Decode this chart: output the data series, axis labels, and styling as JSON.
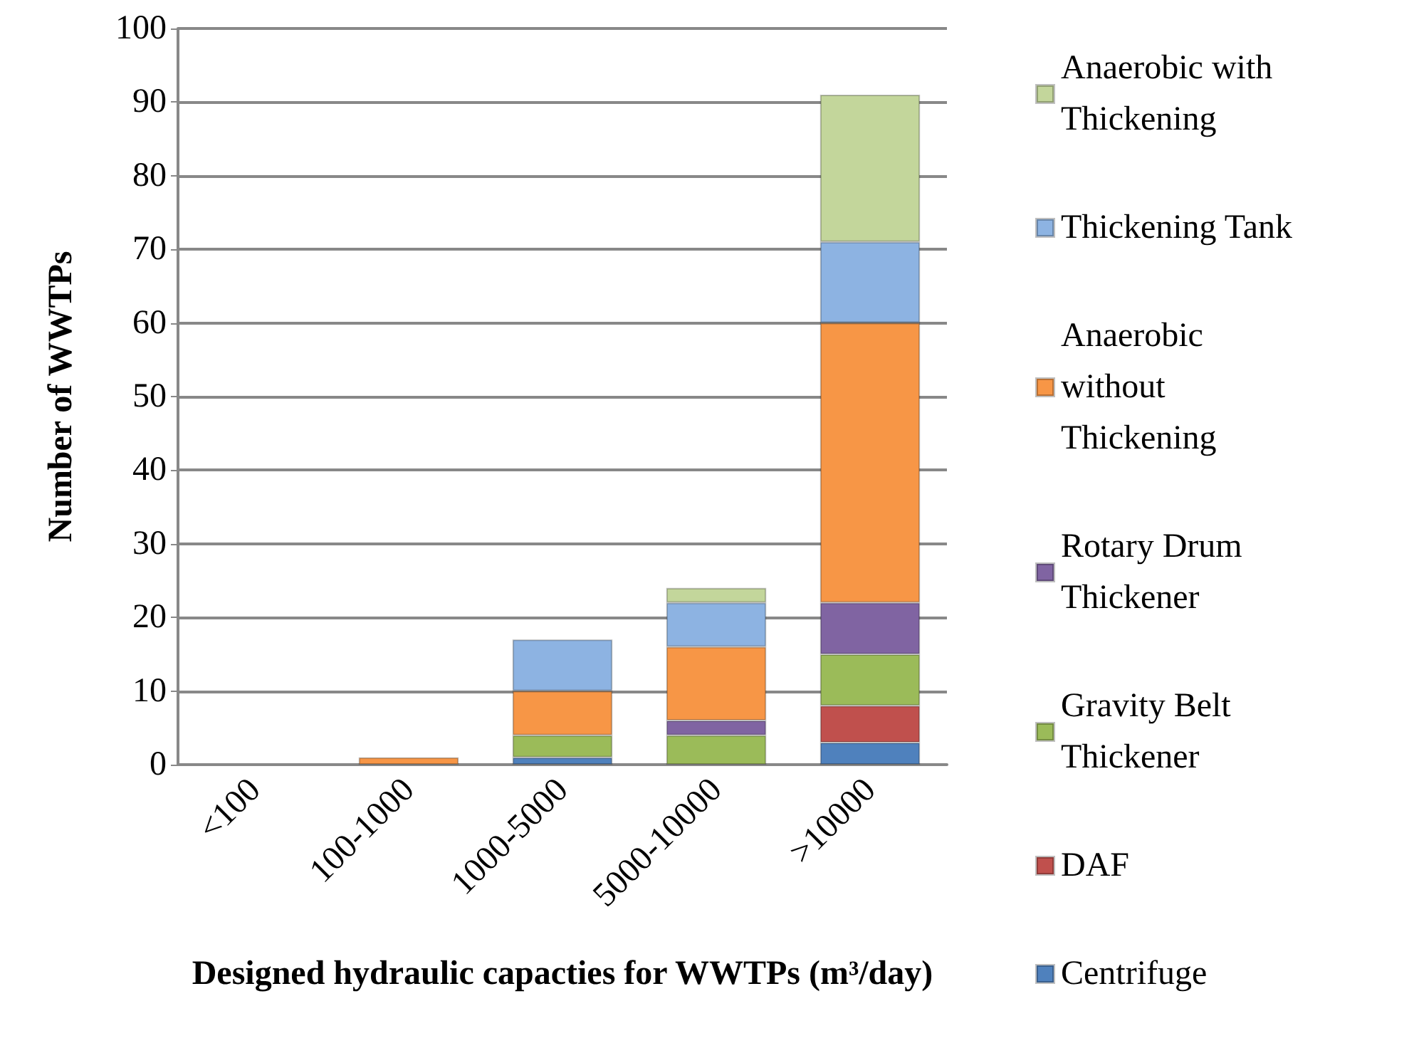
{
  "chart_data": {
    "type": "bar",
    "stacked": true,
    "xlabel": "Designed hydraulic capacties for WWTPs (m³/day)",
    "ylabel": "Number of WWTPs",
    "categories": [
      "<100",
      "100-1000",
      "1000-5000",
      "5000-10000",
      ">10000"
    ],
    "series": [
      {
        "name": "Centrifuge",
        "color": "#4f81bd",
        "values": [
          0,
          0,
          1,
          0,
          3
        ]
      },
      {
        "name": "DAF",
        "color": "#c0504d",
        "values": [
          0,
          0,
          0,
          0,
          5
        ]
      },
      {
        "name": "Gravity Belt Thickener",
        "color": "#9bbb59",
        "values": [
          0,
          0,
          3,
          4,
          7
        ]
      },
      {
        "name": "Rotary Drum Thickener",
        "color": "#8064a2",
        "values": [
          0,
          0,
          0,
          2,
          7
        ]
      },
      {
        "name": "Anaerobic without Thickening",
        "color": "#f79646",
        "values": [
          0,
          1,
          6,
          10,
          38
        ]
      },
      {
        "name": "Thickening Tank",
        "color": "#8db3e2",
        "values": [
          0,
          0,
          7,
          6,
          11
        ]
      },
      {
        "name": "Anaerobic with Thickening",
        "color": "#c3d69b",
        "values": [
          0,
          0,
          0,
          2,
          20
        ]
      }
    ],
    "ylim": [
      0,
      100
    ],
    "yticks": [
      0,
      10,
      20,
      30,
      40,
      50,
      60,
      70,
      80,
      90,
      100
    ],
    "grid": "y",
    "legend": "right"
  }
}
